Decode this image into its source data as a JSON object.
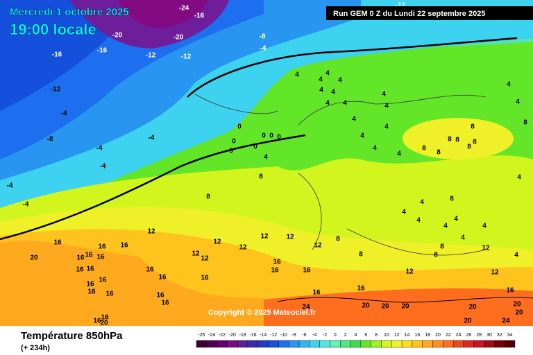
{
  "header": {
    "date": "Mercredi 1 octobre 2025",
    "time": "19:00 locale",
    "run": "Run GEM 0 Z du Lundi 22 septembre 2025"
  },
  "copyright": "Copyright © 2025 Meteociel.fr",
  "footer": {
    "title": "Température 850hPa",
    "lead": "(+ 234h)"
  },
  "legend": {
    "ticks": [
      -26,
      -24,
      -22,
      -20,
      -18,
      -16,
      -14,
      -12,
      -10,
      -8,
      -6,
      -4,
      -2,
      0,
      2,
      4,
      6,
      8,
      10,
      12,
      14,
      16,
      18,
      20,
      22,
      24,
      26,
      28,
      30,
      32,
      34
    ],
    "colors": [
      "#3c0032",
      "#500050",
      "#64006e",
      "#780a82",
      "#5a1e96",
      "#3c28aa",
      "#1e3cc8",
      "#1450dc",
      "#1e6ef0",
      "#2896f0",
      "#32b4f0",
      "#3cd2f0",
      "#50e6dc",
      "#64f0b4",
      "#50e682",
      "#3cdc50",
      "#64e628",
      "#a0f01e",
      "#d2f51e",
      "#f0f028",
      "#ffdc1e",
      "#ffc31e",
      "#ffaa1e",
      "#ff8c1e",
      "#ff6e1e",
      "#f0461e",
      "#dc281e",
      "#c8141e",
      "#a00a14",
      "#780000",
      "#500000"
    ]
  },
  "map_labels": [
    -24,
    -16,
    -20,
    -20,
    -16,
    -16,
    -12,
    -12,
    -8,
    -4,
    -12,
    -12,
    -4,
    -8,
    -4,
    -4,
    -4,
    -4,
    -4,
    0,
    0,
    0,
    0,
    0,
    0,
    0,
    4,
    8,
    8,
    4,
    4,
    4,
    4,
    4,
    4,
    4,
    4,
    4,
    4,
    4,
    4,
    4,
    4,
    4,
    4,
    4,
    8,
    8,
    8,
    8,
    8,
    8,
    8,
    8,
    4,
    4,
    8,
    4,
    4,
    4,
    4,
    4,
    4,
    8,
    8,
    4,
    12,
    12,
    12,
    12,
    12,
    12,
    8,
    8,
    12,
    12,
    12,
    12,
    12,
    16,
    16,
    16,
    16,
    16,
    16,
    16,
    16,
    16,
    16,
    16,
    16,
    16,
    16,
    16,
    16,
    16,
    16,
    16,
    16,
    16,
    16,
    16,
    16,
    16,
    20,
    20,
    20,
    20,
    20,
    20,
    20,
    20,
    20,
    24,
    24
  ]
}
